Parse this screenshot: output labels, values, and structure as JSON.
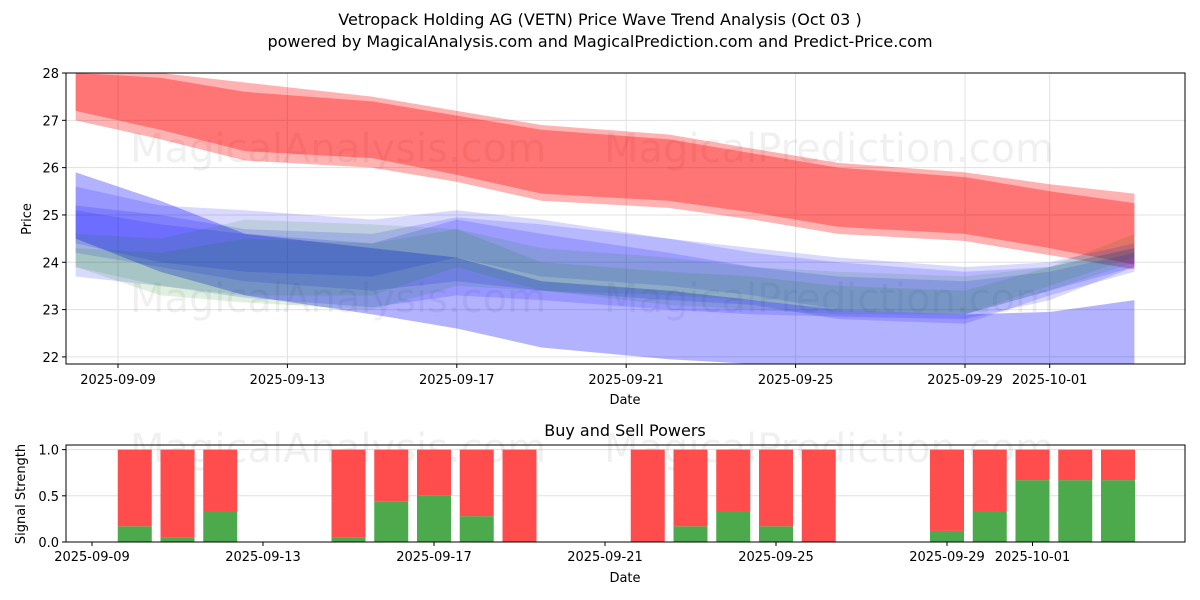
{
  "header": {
    "title": "Vetropack Holding AG (VETN) Price Wave Trend Analysis (Oct 03 )",
    "subtitle": "powered by MagicalAnalysis.com and MagicalPrediction.com and Predict-Price.com"
  },
  "watermarks": [
    "MagicalAnalysis.com",
    "MagicalPrediction.com"
  ],
  "colors": {
    "red_band": "#ff0000",
    "blue_band": "#0000ff",
    "green_band": "#008000",
    "buy": "#4caa4c",
    "sell": "#ff4d4d",
    "grid": "#e0e0e0"
  },
  "chart_data": [
    {
      "type": "area",
      "title": "",
      "xlabel": "Date",
      "ylabel": "Price",
      "ylim": [
        21.85,
        28.0
      ],
      "xlim": [
        "2025-09-07.8",
        "2025-10-04.1"
      ],
      "yticks": [
        22,
        23,
        24,
        25,
        26,
        27,
        28
      ],
      "xticks": [
        "2025-09-09",
        "2025-09-13",
        "2025-09-17",
        "2025-09-21",
        "2025-09-25",
        "2025-09-29",
        "2025-10-01"
      ],
      "grid": true,
      "x": [
        "2025-09-08",
        "2025-09-10",
        "2025-09-12",
        "2025-09-15",
        "2025-09-17",
        "2025-09-19",
        "2025-09-22",
        "2025-09-24",
        "2025-09-26",
        "2025-09-29",
        "2025-10-01",
        "2025-10-03"
      ],
      "series": [
        {
          "name": "red-outer",
          "color": "#ff0000",
          "opacity": 0.3,
          "upper": [
            28.4,
            28.1,
            27.8,
            27.5,
            27.2,
            26.9,
            26.7,
            26.4,
            26.1,
            25.9,
            25.65,
            25.45
          ],
          "lower": [
            27.0,
            26.6,
            26.15,
            26.0,
            25.7,
            25.3,
            25.15,
            24.9,
            24.6,
            24.45,
            24.15,
            23.85
          ]
        },
        {
          "name": "red-inner",
          "color": "#ff0000",
          "opacity": 0.35,
          "upper": [
            28.2,
            27.9,
            27.6,
            27.4,
            27.1,
            26.8,
            26.6,
            26.3,
            26.0,
            25.8,
            25.5,
            25.25
          ],
          "lower": [
            27.2,
            26.8,
            26.35,
            26.2,
            25.85,
            25.45,
            25.3,
            25.05,
            24.75,
            24.6,
            24.3,
            23.95
          ]
        },
        {
          "name": "blue-wide",
          "color": "#0000ff",
          "opacity": 0.3,
          "upper": [
            25.9,
            25.3,
            24.6,
            24.3,
            24.1,
            23.6,
            23.4,
            23.2,
            23.0,
            22.9,
            22.95,
            23.2
          ],
          "lower": [
            24.5,
            23.8,
            23.3,
            22.9,
            22.6,
            22.2,
            21.95,
            21.85,
            21.85,
            21.85,
            21.85,
            21.85
          ]
        },
        {
          "name": "blue-1",
          "color": "#0000ff",
          "opacity": 0.15,
          "upper": [
            25.6,
            25.2,
            25.1,
            24.9,
            25.1,
            24.9,
            24.5,
            24.3,
            24.1,
            23.9,
            24.0,
            24.4
          ],
          "lower": [
            23.7,
            23.5,
            23.25,
            23.05,
            23.3,
            23.2,
            23.0,
            22.9,
            22.85,
            22.8,
            23.2,
            23.9
          ]
        },
        {
          "name": "blue-2",
          "color": "#0000ff",
          "opacity": 0.15,
          "upper": [
            25.2,
            25.0,
            24.7,
            24.6,
            24.95,
            24.8,
            24.5,
            24.2,
            24.0,
            23.8,
            23.9,
            24.3
          ],
          "lower": [
            24.2,
            23.9,
            23.6,
            23.4,
            23.6,
            23.4,
            23.2,
            23.1,
            22.8,
            22.7,
            23.3,
            23.8
          ]
        },
        {
          "name": "blue-3",
          "color": "#0000ff",
          "opacity": 0.15,
          "upper": [
            25.1,
            24.8,
            24.6,
            24.4,
            24.9,
            24.6,
            24.2,
            23.9,
            23.7,
            23.6,
            23.8,
            24.2
          ],
          "lower": [
            24.4,
            24.0,
            23.8,
            23.7,
            24.1,
            23.7,
            23.5,
            23.3,
            23.0,
            22.9,
            23.4,
            23.9
          ]
        },
        {
          "name": "green-1",
          "color": "#008000",
          "opacity": 0.12,
          "upper": [
            24.6,
            24.5,
            24.9,
            24.8,
            24.7,
            24.3,
            24.1,
            23.9,
            23.8,
            23.7,
            23.9,
            24.3
          ],
          "lower": [
            23.9,
            23.3,
            23.15,
            23.0,
            23.5,
            23.4,
            23.1,
            23.0,
            22.9,
            22.9,
            23.4,
            24.0
          ]
        },
        {
          "name": "green-2",
          "color": "#008000",
          "opacity": 0.12,
          "upper": [
            24.3,
            24.2,
            24.5,
            24.4,
            24.7,
            24.0,
            23.8,
            23.7,
            23.5,
            23.4,
            23.9,
            24.6
          ],
          "lower": [
            23.9,
            23.5,
            23.3,
            23.3,
            23.9,
            23.4,
            23.3,
            23.2,
            23.0,
            22.9,
            23.5,
            24.1
          ]
        }
      ]
    },
    {
      "type": "bar",
      "title": "Buy and Sell Powers",
      "xlabel": "Date",
      "ylabel": "Signal Strength",
      "ylim": [
        0,
        1.05
      ],
      "yticks": [
        "0.0",
        "0.5",
        "1.0"
      ],
      "xticks": [
        "2025-09-09",
        "2025-09-13",
        "2025-09-17",
        "2025-09-21",
        "2025-09-25",
        "2025-09-29",
        "2025-10-01"
      ],
      "grid": true,
      "categories": [
        "2025-09-10",
        "2025-09-11",
        "2025-09-12",
        "2025-09-15",
        "2025-09-16",
        "2025-09-17",
        "2025-09-18",
        "2025-09-19",
        "2025-09-22",
        "2025-09-23",
        "2025-09-24",
        "2025-09-25",
        "2025-09-26",
        "2025-09-29",
        "2025-09-30",
        "2025-10-01",
        "2025-10-02",
        "2025-10-03"
      ],
      "series": [
        {
          "name": "Buy",
          "color": "#4caa4c",
          "values": [
            0.17,
            0.05,
            0.33,
            0.05,
            0.44,
            0.5,
            0.28,
            0.0,
            0.0,
            0.17,
            0.33,
            0.17,
            0.0,
            0.12,
            0.33,
            0.67,
            0.67,
            0.67
          ]
        },
        {
          "name": "Sell",
          "color": "#ff4d4d",
          "values": [
            0.83,
            0.95,
            0.67,
            0.95,
            0.56,
            0.5,
            0.72,
            1.0,
            1.0,
            0.83,
            0.67,
            0.83,
            1.0,
            0.88,
            0.67,
            0.33,
            0.33,
            0.33
          ]
        }
      ]
    }
  ]
}
